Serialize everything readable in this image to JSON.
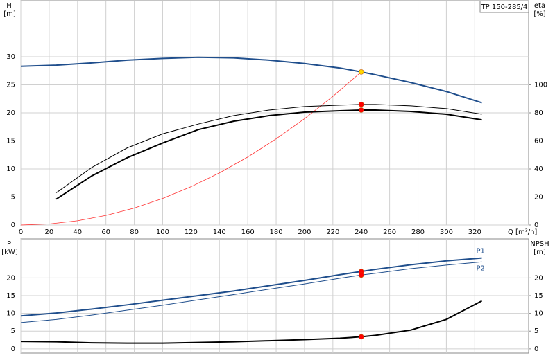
{
  "chart_data": [
    {
      "type": "line",
      "title": "TP 150-285/4",
      "ylabel": "H",
      "yunit": "[m]",
      "y2label": "eta",
      "y2unit": "[%]",
      "xlabel": "Q [m³/h]",
      "xlim": [
        0,
        358
      ],
      "xticks": [
        0,
        20,
        40,
        60,
        80,
        100,
        120,
        140,
        160,
        180,
        200,
        220,
        240,
        260,
        280,
        300,
        320
      ],
      "ylim": [
        0,
        40
      ],
      "yticks": [
        0,
        5,
        10,
        15,
        20,
        25,
        30
      ],
      "y2lim": [
        0,
        160
      ],
      "y2ticks": [
        0,
        20,
        40,
        60,
        80,
        100
      ],
      "grid": true,
      "xtick_labels": true,
      "series": [
        {
          "color": "#1f4e8c",
          "width": 2,
          "axis": "y",
          "x": [
            0,
            25,
            50,
            75,
            100,
            125,
            150,
            175,
            200,
            225,
            240,
            250,
            275,
            300,
            325
          ],
          "values": [
            28.3,
            28.5,
            28.9,
            29.4,
            29.7,
            29.9,
            29.8,
            29.4,
            28.8,
            28.0,
            27.3,
            26.8,
            25.4,
            23.8,
            21.8
          ]
        },
        {
          "color": "#ff3030",
          "width": 0.8,
          "axis": "y",
          "x": [
            0,
            20,
            40,
            60,
            80,
            100,
            120,
            140,
            160,
            180,
            200,
            220,
            240
          ],
          "values": [
            0,
            0.19,
            0.76,
            1.71,
            3.03,
            4.74,
            6.83,
            9.29,
            12.13,
            15.36,
            18.96,
            22.94,
            27.3
          ]
        },
        {
          "color": "#000000",
          "width": 1,
          "axis": "y2",
          "x": [
            25,
            50,
            75,
            100,
            125,
            150,
            175,
            200,
            225,
            240,
            250,
            275,
            300,
            325
          ],
          "values": [
            23,
            41,
            55,
            65,
            72,
            78,
            82,
            84.5,
            85.5,
            86,
            86,
            85,
            83,
            79
          ]
        },
        {
          "color": "#000000",
          "width": 2,
          "axis": "y2",
          "x": [
            25,
            50,
            75,
            100,
            125,
            150,
            175,
            200,
            225,
            240,
            250,
            275,
            300,
            325
          ],
          "values": [
            18.5,
            35,
            48,
            58.5,
            68,
            74,
            78,
            80.5,
            81.5,
            82,
            82,
            81,
            79,
            75
          ]
        },
        {
          "color": "#ffd700",
          "markers": true,
          "axis": "y",
          "x": [
            240
          ],
          "values": [
            27.3
          ]
        },
        {
          "color": "#ff0000",
          "markers": true,
          "axis": "y2",
          "x": [
            240,
            240
          ],
          "values": [
            86,
            82
          ]
        }
      ]
    },
    {
      "type": "line",
      "ylabel": "P",
      "yunit": "[kW]",
      "y2label": "NPSH",
      "y2unit": "[m]",
      "xlim": [
        0,
        358
      ],
      "xticks": [
        0,
        20,
        40,
        60,
        80,
        100,
        120,
        140,
        160,
        180,
        200,
        220,
        240,
        260,
        280,
        300,
        320
      ],
      "ylim": [
        -1.2,
        31
      ],
      "yticks": [
        0,
        5,
        10,
        15,
        20
      ],
      "y2lim": [
        -1.2,
        31
      ],
      "y2ticks": [
        0,
        5,
        10,
        15,
        20
      ],
      "grid": true,
      "xtick_labels": false,
      "series": [
        {
          "name": "P1",
          "label_pos": "above",
          "color": "#1f4e8c",
          "width": 2,
          "axis": "y",
          "x": [
            0,
            25,
            50,
            75,
            100,
            125,
            150,
            175,
            200,
            225,
            240,
            250,
            275,
            300,
            325
          ],
          "values": [
            9.3,
            10.1,
            11.2,
            12.4,
            13.7,
            15.0,
            16.3,
            17.8,
            19.3,
            20.9,
            21.8,
            22.4,
            23.7,
            24.8,
            25.6
          ]
        },
        {
          "name": "P2",
          "label_pos": "below",
          "color": "#1f4e8c",
          "width": 1,
          "axis": "y",
          "x": [
            0,
            25,
            50,
            75,
            100,
            125,
            150,
            175,
            200,
            225,
            240,
            250,
            275,
            300,
            325
          ],
          "values": [
            7.4,
            8.3,
            9.5,
            10.9,
            12.3,
            13.8,
            15.3,
            16.8,
            18.3,
            19.9,
            20.8,
            21.3,
            22.6,
            23.6,
            24.5
          ]
        },
        {
          "color": "#000000",
          "width": 2,
          "axis": "y2",
          "x": [
            0,
            25,
            50,
            75,
            100,
            125,
            150,
            175,
            200,
            225,
            240,
            250,
            275,
            300,
            325
          ],
          "values": [
            2.1,
            2.0,
            1.7,
            1.6,
            1.6,
            1.8,
            2.0,
            2.3,
            2.6,
            3.0,
            3.4,
            3.8,
            5.3,
            8.3,
            13.5
          ]
        },
        {
          "color": "#ff0000",
          "markers": true,
          "axis": "y",
          "x": [
            240,
            240
          ],
          "values": [
            21.8,
            20.8
          ]
        },
        {
          "color": "#ff0000",
          "markers": true,
          "axis": "y2",
          "x": [
            240
          ],
          "values": [
            3.4
          ]
        }
      ]
    }
  ]
}
